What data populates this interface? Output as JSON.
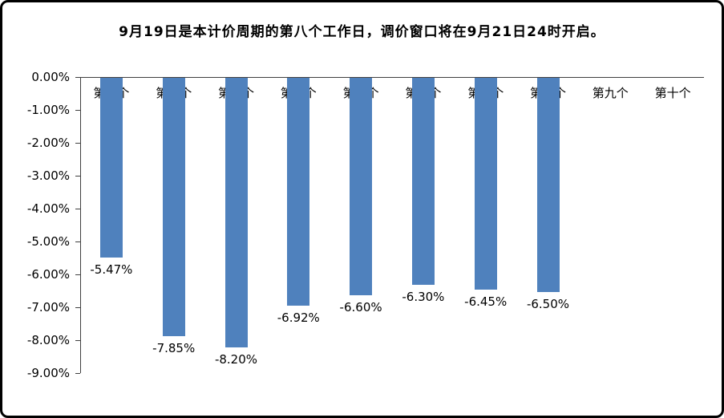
{
  "title": "9月19日是本计价周期的第八个工作日，调价窗口将在9月21日24时开启。",
  "chart_data": {
    "type": "bar",
    "title": "9月19日是本计价周期的第八个工作日，调价窗口将在9月21日24时开启。",
    "categories": [
      "第一个",
      "第二个",
      "第三个",
      "第四个",
      "第五个",
      "第六个",
      "第七个",
      "第八个",
      "第九个",
      "第十个"
    ],
    "values": [
      -5.47,
      -7.85,
      -8.2,
      -6.92,
      -6.6,
      -6.3,
      -6.45,
      -6.5,
      null,
      null
    ],
    "data_labels": [
      "-5.47%",
      "-7.85%",
      "-8.20%",
      "-6.92%",
      "-6.60%",
      "-6.30%",
      "-6.45%",
      "-6.50%",
      "",
      ""
    ],
    "xlabel": "",
    "ylabel": "",
    "ylim": [
      -9,
      0
    ],
    "ytick_labels": [
      "0.00%",
      "-1.00%",
      "-2.00%",
      "-3.00%",
      "-4.00%",
      "-5.00%",
      "-6.00%",
      "-7.00%",
      "-8.00%",
      "-9.00%"
    ],
    "bar_color": "#4F81BD",
    "axis_color": "#404040",
    "grid": false,
    "legend": "none"
  }
}
